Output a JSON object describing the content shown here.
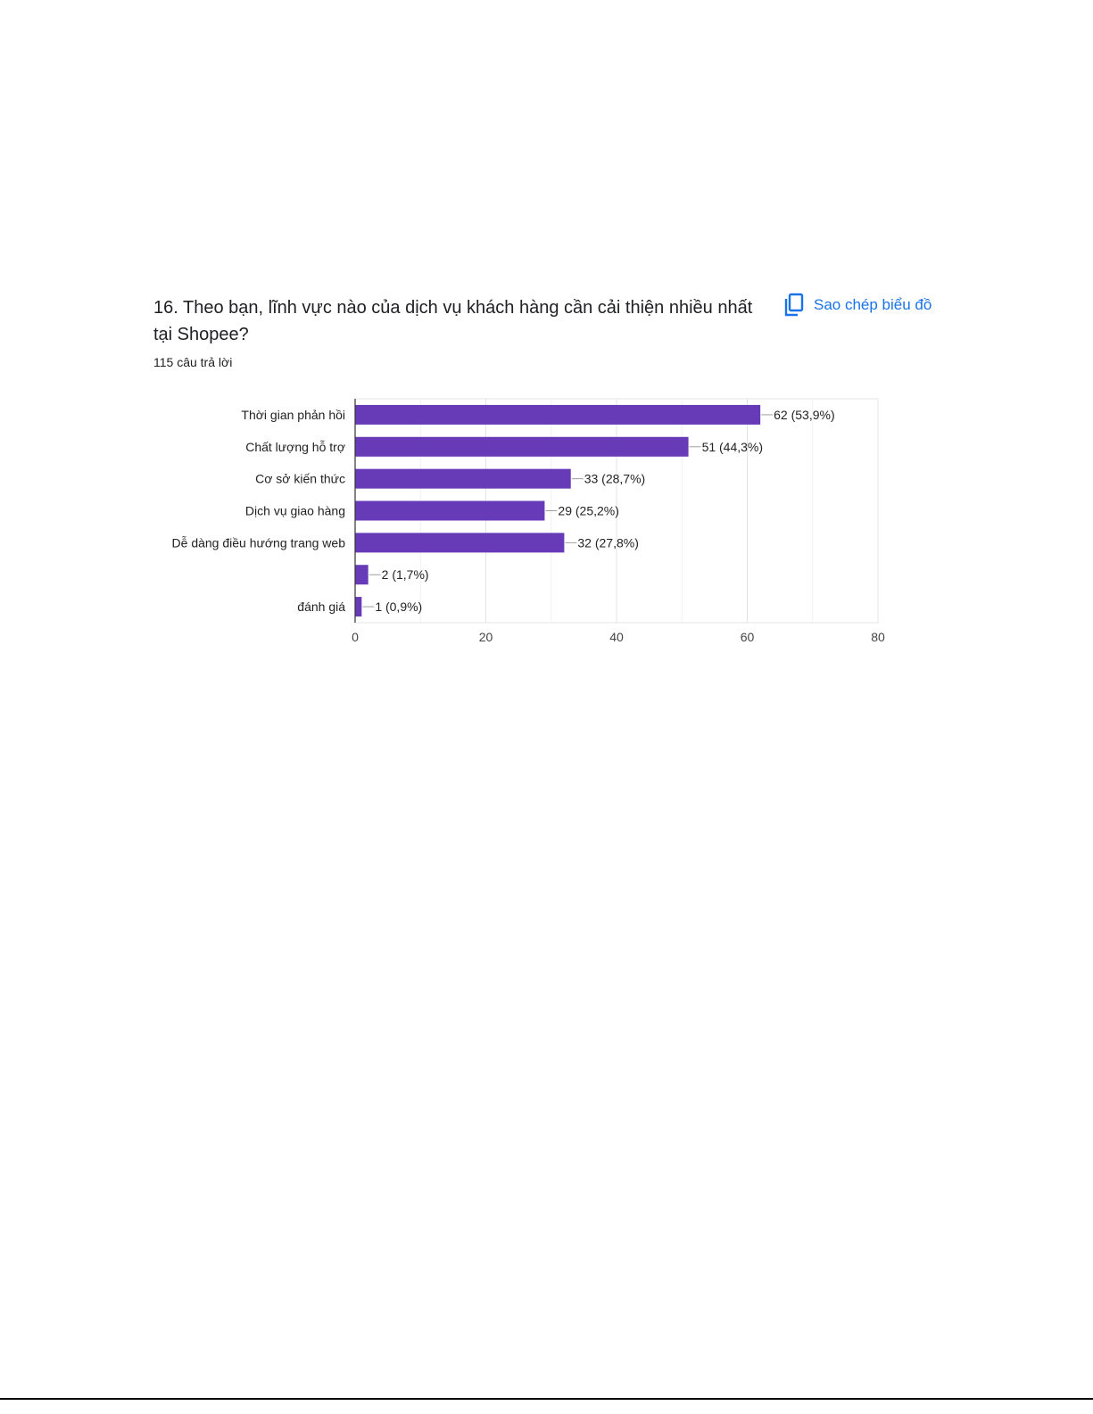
{
  "question": {
    "title": "16. Theo bạn, lĩnh vực nào của dịch vụ khách hàng cần cải thiện nhiều nhất tại Shopee?",
    "response_count": "115 câu trả lời"
  },
  "copy_button": {
    "label": "Sao chép biểu đồ",
    "icon": "copy-icon",
    "color": "#1a73e8"
  },
  "chart_data": {
    "type": "bar",
    "orientation": "horizontal",
    "categories": [
      "Thời gian phản hồi",
      "Chất lượng hỗ trợ",
      "Cơ sở kiến thức",
      "Dịch vụ giao hàng",
      "Dễ dàng điều hướng trang web",
      "",
      "đánh giá"
    ],
    "values": [
      62,
      51,
      33,
      29,
      32,
      2,
      1
    ],
    "data_labels": [
      "62 (53,9%)",
      "51 (44,3%)",
      "33 (28,7%)",
      "29 (25,2%)",
      "32 (27,8%)",
      "2 (1,7%)",
      "1 (0,9%)"
    ],
    "xlim": [
      0,
      80
    ],
    "x_ticks": [
      0,
      20,
      40,
      60,
      80
    ],
    "grid": true,
    "bar_color": "#673ab7"
  }
}
